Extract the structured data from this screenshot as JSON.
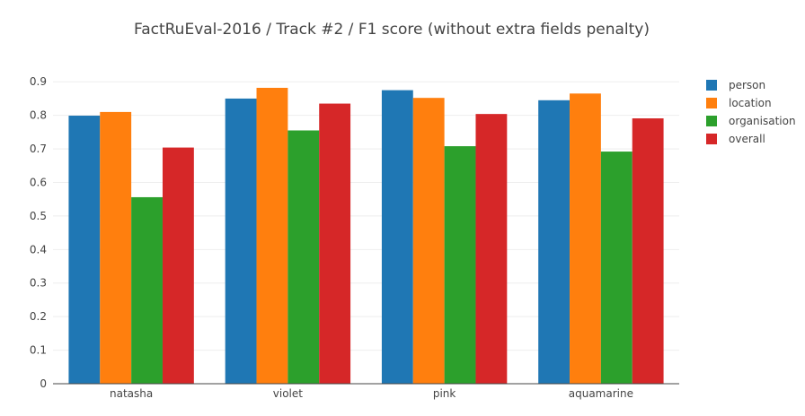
{
  "chart_data": {
    "type": "bar",
    "title": "FactRuEval-2016 / Track #2 / F1 score (without extra fields penalty)",
    "xlabel": "",
    "ylabel": "",
    "categories": [
      "natasha",
      "violet",
      "pink",
      "aquamarine"
    ],
    "ylim": [
      0,
      0.93
    ],
    "yticks": [
      0,
      0.1,
      0.2,
      0.3,
      0.4,
      0.5,
      0.6,
      0.7,
      0.8,
      0.9
    ],
    "ytick_labels": [
      "0",
      "0.1",
      "0.2",
      "0.3",
      "0.4",
      "0.5",
      "0.6",
      "0.7",
      "0.8",
      "0.9"
    ],
    "grid": true,
    "legend_position": "top-right",
    "series": [
      {
        "name": "person",
        "color": "#1f77b4",
        "values": [
          0.799,
          0.85,
          0.875,
          0.845
        ]
      },
      {
        "name": "location",
        "color": "#ff7f0e",
        "values": [
          0.81,
          0.882,
          0.852,
          0.865
        ]
      },
      {
        "name": "organisation",
        "color": "#2ca02c",
        "values": [
          0.556,
          0.755,
          0.708,
          0.692
        ]
      },
      {
        "name": "overall",
        "color": "#d62728",
        "values": [
          0.704,
          0.835,
          0.804,
          0.791
        ]
      }
    ]
  }
}
